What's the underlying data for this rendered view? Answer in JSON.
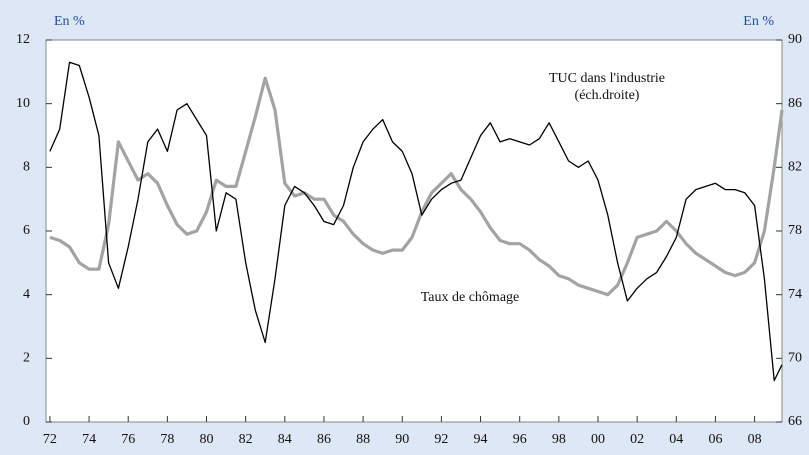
{
  "chart_data": {
    "type": "line",
    "ylabel": "En %",
    "y2label": "En %",
    "annotations": [
      "TUC dans l'industrie",
      "(éch.droite)",
      "Taux de chômage"
    ],
    "x": [
      1972,
      1972.5,
      1973,
      1973.5,
      1974,
      1974.5,
      1975,
      1975.5,
      1976,
      1976.5,
      1977,
      1977.5,
      1978,
      1978.5,
      1979,
      1979.5,
      1980,
      1980.5,
      1981,
      1981.5,
      1982,
      1982.5,
      1983,
      1983.5,
      1984,
      1984.5,
      1985,
      1985.5,
      1986,
      1986.5,
      1987,
      1987.5,
      1988,
      1988.5,
      1989,
      1989.5,
      1990,
      1990.5,
      1991,
      1991.5,
      1992,
      1992.5,
      1993,
      1993.5,
      1994,
      1994.5,
      1995,
      1995.5,
      1996,
      1996.5,
      1997,
      1997.5,
      1998,
      1998.5,
      1999,
      1999.5,
      2000,
      2000.5,
      2001,
      2001.5,
      2002,
      2002.5,
      2003,
      2003.5,
      2004,
      2004.5,
      2005,
      2005.5,
      2006,
      2006.5,
      2007,
      2007.5,
      2008,
      2008.5,
      2009,
      2009.4
    ],
    "series": [
      {
        "name": "Taux de chômage",
        "color": "#a3a3a3",
        "axis": "y",
        "values": [
          5.8,
          5.7,
          5.5,
          5.0,
          4.8,
          4.8,
          6.2,
          8.8,
          8.2,
          7.6,
          7.8,
          7.5,
          6.8,
          6.2,
          5.9,
          6.0,
          6.6,
          7.6,
          7.4,
          7.4,
          8.5,
          9.6,
          10.8,
          9.8,
          7.5,
          7.1,
          7.2,
          7.0,
          7.0,
          6.5,
          6.3,
          5.9,
          5.6,
          5.4,
          5.3,
          5.4,
          5.4,
          5.8,
          6.6,
          7.2,
          7.5,
          7.8,
          7.3,
          7.0,
          6.6,
          6.1,
          5.7,
          5.6,
          5.6,
          5.4,
          5.1,
          4.9,
          4.6,
          4.5,
          4.3,
          4.2,
          4.1,
          4.0,
          4.3,
          5.0,
          5.8,
          5.9,
          6.0,
          6.3,
          6.0,
          5.6,
          5.3,
          5.1,
          4.9,
          4.7,
          4.6,
          4.7,
          5.0,
          6.0,
          8.0,
          9.8
        ]
      },
      {
        "name": "TUC dans l'industrie",
        "color": "#000000",
        "axis": "y2",
        "values": [
          83,
          84.4,
          88.6,
          88.4,
          86.4,
          84,
          76,
          74.4,
          77,
          80,
          83.6,
          84.4,
          83,
          85.6,
          86,
          85,
          84,
          78,
          80.4,
          80,
          76,
          73,
          71,
          75,
          79.6,
          80.8,
          80.4,
          79.6,
          78.6,
          78.4,
          79.6,
          82,
          83.6,
          84.4,
          85,
          83.6,
          83,
          81.6,
          79,
          80,
          80.6,
          81,
          81.2,
          82.6,
          84,
          84.8,
          83.6,
          83.8,
          83.6,
          83.4,
          83.8,
          84.8,
          83.6,
          82.4,
          82,
          82.4,
          81.2,
          79,
          76,
          73.6,
          74.4,
          75,
          75.4,
          76.4,
          77.6,
          80,
          80.6,
          80.8,
          81,
          80.6,
          80.6,
          80.4,
          79.6,
          75,
          68.6,
          69.6
        ]
      }
    ],
    "xlim": [
      1971.8,
      2009.4
    ],
    "xticks": [
      {
        "value": 1972,
        "label": "72"
      },
      {
        "value": 1974,
        "label": "74"
      },
      {
        "value": 1976,
        "label": "76"
      },
      {
        "value": 1978,
        "label": "78"
      },
      {
        "value": 1980,
        "label": "80"
      },
      {
        "value": 1982,
        "label": "82"
      },
      {
        "value": 1984,
        "label": "84"
      },
      {
        "value": 1986,
        "label": "86"
      },
      {
        "value": 1988,
        "label": "88"
      },
      {
        "value": 1990,
        "label": "90"
      },
      {
        "value": 1992,
        "label": "92"
      },
      {
        "value": 1994,
        "label": "94"
      },
      {
        "value": 1996,
        "label": "96"
      },
      {
        "value": 1998,
        "label": "98"
      },
      {
        "value": 2000,
        "label": "00"
      },
      {
        "value": 2002,
        "label": "02"
      },
      {
        "value": 2004,
        "label": "04"
      },
      {
        "value": 2006,
        "label": "06"
      },
      {
        "value": 2008,
        "label": "08"
      }
    ],
    "ylim": [
      0,
      12
    ],
    "yticks": [
      0,
      2,
      4,
      6,
      8,
      10,
      12
    ],
    "y2lim": [
      66,
      90
    ],
    "y2ticks": [
      66,
      70,
      74,
      78,
      82,
      86,
      90
    ],
    "grid": false
  }
}
